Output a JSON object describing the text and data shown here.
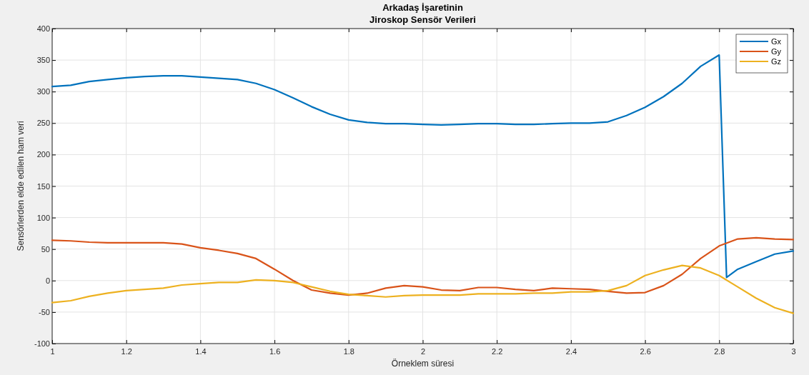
{
  "chart_data": {
    "type": "line",
    "title": "Arkadaş İşaretinin",
    "subtitle": "Jiroskop Sensör Verileri",
    "xlabel": "Örneklem süresi",
    "ylabel": "Sensörlerden elde edilen ham veri",
    "x": [
      1.0,
      1.05,
      1.1,
      1.15,
      1.2,
      1.25,
      1.3,
      1.35,
      1.4,
      1.45,
      1.5,
      1.55,
      1.6,
      1.65,
      1.7,
      1.75,
      1.8,
      1.85,
      1.9,
      1.95,
      2.0,
      2.05,
      2.1,
      2.15,
      2.2,
      2.25,
      2.3,
      2.35,
      2.4,
      2.45,
      2.5,
      2.55,
      2.6,
      2.65,
      2.7,
      2.75,
      2.8,
      2.82,
      2.85,
      2.9,
      2.95,
      3.0
    ],
    "series": [
      {
        "name": "Gx",
        "color": "#0072bd",
        "values": [
          308,
          310,
          316,
          319,
          322,
          324,
          325,
          325,
          323,
          321,
          319,
          313,
          303,
          290,
          276,
          264,
          255,
          251,
          249,
          249,
          248,
          247,
          248,
          249,
          249,
          248,
          248,
          249,
          250,
          250,
          252,
          262,
          275,
          292,
          313,
          340,
          358,
          5,
          18,
          30,
          42,
          47
        ]
      },
      {
        "name": "Gy",
        "color": "#d95319",
        "x": [
          1.0,
          1.05,
          1.1,
          1.15,
          1.2,
          1.25,
          1.3,
          1.35,
          1.4,
          1.45,
          1.5,
          1.55,
          1.6,
          1.65,
          1.7,
          1.75,
          1.8,
          1.85,
          1.9,
          1.95,
          2.0,
          2.05,
          2.1,
          2.15,
          2.2,
          2.25,
          2.3,
          2.35,
          2.4,
          2.45,
          2.5,
          2.55,
          2.6,
          2.65,
          2.7,
          2.75,
          2.8,
          2.85,
          2.9,
          2.95,
          3.0
        ],
        "values": [
          64,
          63,
          61,
          60,
          60,
          60,
          60,
          58,
          52,
          48,
          43,
          35,
          18,
          0,
          -15,
          -20,
          -23,
          -20,
          -12,
          -8,
          -10,
          -15,
          -16,
          -11,
          -11,
          -14,
          -16,
          -12,
          -13,
          -14,
          -17,
          -20,
          -19,
          -8,
          10,
          35,
          55,
          66,
          68,
          66,
          65
        ]
      },
      {
        "name": "Gz",
        "color": "#edb120",
        "x": [
          1.0,
          1.05,
          1.1,
          1.15,
          1.2,
          1.25,
          1.3,
          1.35,
          1.4,
          1.45,
          1.5,
          1.55,
          1.6,
          1.65,
          1.7,
          1.75,
          1.8,
          1.85,
          1.9,
          1.95,
          2.0,
          2.05,
          2.1,
          2.15,
          2.2,
          2.25,
          2.3,
          2.35,
          2.4,
          2.45,
          2.5,
          2.55,
          2.6,
          2.65,
          2.7,
          2.75,
          2.8,
          2.85,
          2.9,
          2.95,
          3.0
        ],
        "values": [
          -35,
          -32,
          -25,
          -20,
          -16,
          -14,
          -12,
          -7,
          -5,
          -3,
          -3,
          1,
          0,
          -3,
          -10,
          -17,
          -22,
          -24,
          -26,
          -24,
          -23,
          -23,
          -23,
          -21,
          -21,
          -21,
          -20,
          -20,
          -18,
          -18,
          -16,
          -8,
          8,
          17,
          24,
          20,
          8,
          -10,
          -28,
          -43,
          -52
        ]
      }
    ],
    "xlim": [
      1,
      3
    ],
    "xticks": [
      1,
      1.2,
      1.4,
      1.6,
      1.8,
      2,
      2.2,
      2.4,
      2.6,
      2.8,
      3
    ],
    "ylim": [
      -100,
      400
    ],
    "yticks": [
      -100,
      -50,
      0,
      50,
      100,
      150,
      200,
      250,
      300,
      350,
      400
    ],
    "grid": true,
    "legend": "top right",
    "line_style": "solid",
    "marker": "none"
  }
}
